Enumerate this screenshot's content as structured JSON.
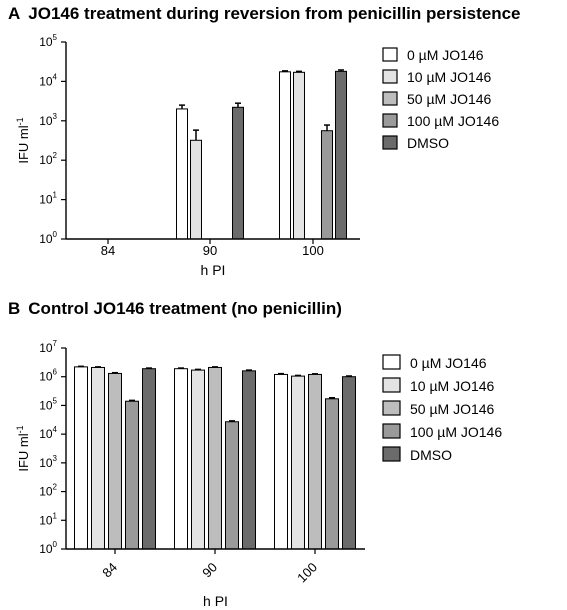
{
  "panels": [
    {
      "letter": "A",
      "title": "JO146 treatment during reversion from penicillin persistence",
      "chart_data": {
        "type": "bar",
        "yscale": "log",
        "ylim_exponents": [
          0,
          5
        ],
        "ylabel": "IFU ml",
        "ylabel_sup": "-1",
        "xlabel": "h PI",
        "categories": [
          "84",
          "90",
          "100"
        ],
        "x_tick_rotation": 0,
        "legend_position": "top-right",
        "series": [
          {
            "name": "0 µM JO146",
            "color": "#ffffff",
            "values": [
              null,
              2000,
              17500
            ],
            "errors": [
              null,
              500,
              1000
            ]
          },
          {
            "name": "10 µM JO146",
            "color": "#e3e3e3",
            "values": [
              null,
              320,
              17000
            ],
            "errors": [
              null,
              260,
              1000
            ]
          },
          {
            "name": "50 µM JO146",
            "color": "#bdbdbd",
            "values": [
              null,
              null,
              null
            ],
            "errors": [
              null,
              null,
              null
            ]
          },
          {
            "name": "100 µM JO146",
            "color": "#9a9a9a",
            "values": [
              null,
              null,
              560
            ],
            "errors": [
              null,
              null,
              220
            ]
          },
          {
            "name": "DMSO",
            "color": "#6b6b6b",
            "values": [
              null,
              2200,
              18000
            ],
            "errors": [
              null,
              600,
              1500
            ]
          }
        ]
      }
    },
    {
      "letter": "B",
      "title": "Control JO146 treatment (no penicillin)",
      "chart_data": {
        "type": "bar",
        "yscale": "log",
        "ylim_exponents": [
          0,
          7
        ],
        "ylabel": "IFU ml",
        "ylabel_sup": "-1",
        "xlabel": "h PI",
        "categories": [
          "84",
          "90",
          "100"
        ],
        "x_tick_rotation": -45,
        "legend_position": "right",
        "series": [
          {
            "name": "0 µM JO146",
            "color": "#ffffff",
            "values": [
              2200000,
              1900000,
              1200000
            ],
            "errors": [
              100000,
              100000,
              80000
            ]
          },
          {
            "name": "10 µM JO146",
            "color": "#e3e3e3",
            "values": [
              2100000,
              1700000,
              1050000
            ],
            "errors": [
              100000,
              100000,
              60000
            ]
          },
          {
            "name": "50 µM JO146",
            "color": "#bdbdbd",
            "values": [
              1300000,
              2100000,
              1200000
            ],
            "errors": [
              80000,
              100000,
              60000
            ]
          },
          {
            "name": "100 µM JO146",
            "color": "#9a9a9a",
            "values": [
              140000,
              27000,
              170000
            ],
            "errors": [
              10000,
              2000,
              15000
            ]
          },
          {
            "name": "DMSO",
            "color": "#6b6b6b",
            "values": [
              1900000,
              1600000,
              1000000
            ],
            "errors": [
              100000,
              100000,
              60000
            ]
          }
        ]
      }
    }
  ]
}
